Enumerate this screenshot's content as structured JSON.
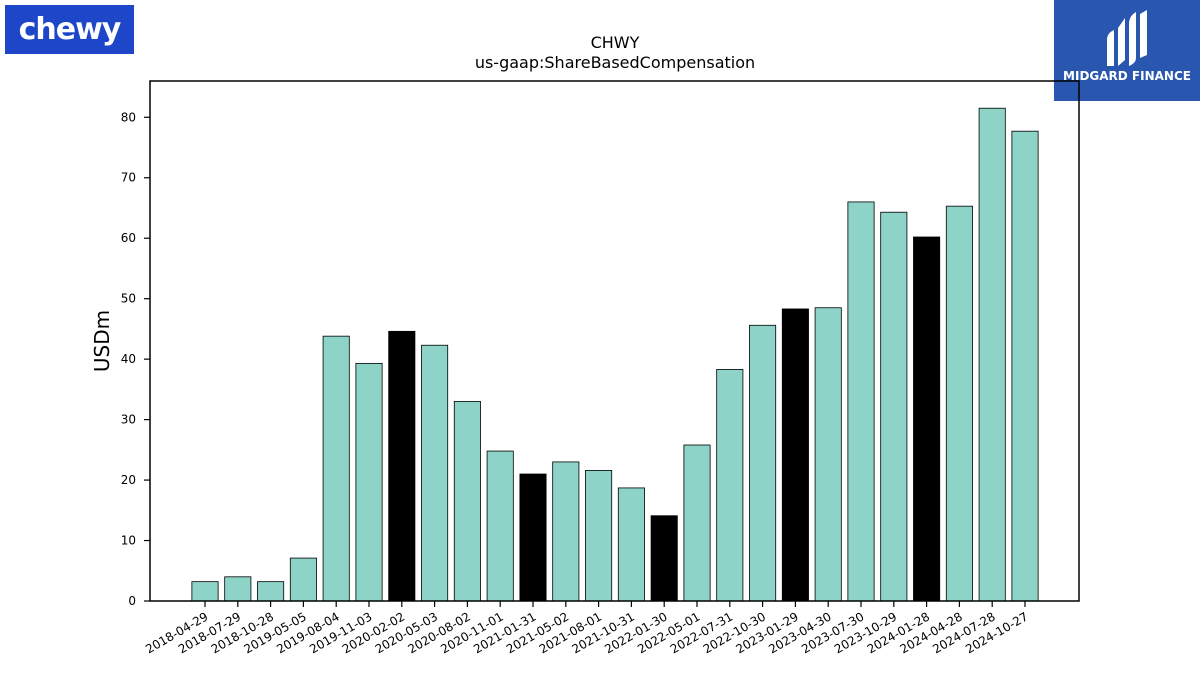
{
  "logos": {
    "chewy": "chewy",
    "midgard": "MIDGARD FINANCE"
  },
  "colors": {
    "bar_default": "#8dd3c7",
    "bar_highlight": "#000000",
    "chewy_brand": "#1d46c8",
    "midgard_brand": "#2957b0"
  },
  "chart_data": {
    "type": "bar",
    "title": "CHWY",
    "subtitle": "us-gaap:ShareBasedCompensation",
    "xlabel": "",
    "ylabel": "USDm",
    "ylim": [
      0,
      86
    ],
    "yticks": [
      0,
      10,
      20,
      30,
      40,
      50,
      60,
      70,
      80
    ],
    "grid": false,
    "categories": [
      "2018-04-29",
      "2018-07-29",
      "2018-10-28",
      "2019-05-05",
      "2019-08-04",
      "2019-11-03",
      "2020-02-02",
      "2020-05-03",
      "2020-08-02",
      "2020-11-01",
      "2021-01-31",
      "2021-05-02",
      "2021-08-01",
      "2021-10-31",
      "2022-01-30",
      "2022-05-01",
      "2022-07-31",
      "2022-10-30",
      "2023-01-29",
      "2023-04-30",
      "2023-07-30",
      "2023-10-29",
      "2024-01-28",
      "2024-04-28",
      "2024-07-28",
      "2024-10-27"
    ],
    "values": [
      3.2,
      4.0,
      3.2,
      7.1,
      43.8,
      39.3,
      44.6,
      42.3,
      33.0,
      24.8,
      21.0,
      23.0,
      21.6,
      18.7,
      14.1,
      25.8,
      38.3,
      45.6,
      48.3,
      48.5,
      66.0,
      64.3,
      60.2,
      65.3,
      81.5,
      77.7
    ],
    "highlighted": [
      "2020-02-02",
      "2021-01-31",
      "2022-01-30",
      "2023-01-29",
      "2024-01-28"
    ]
  }
}
